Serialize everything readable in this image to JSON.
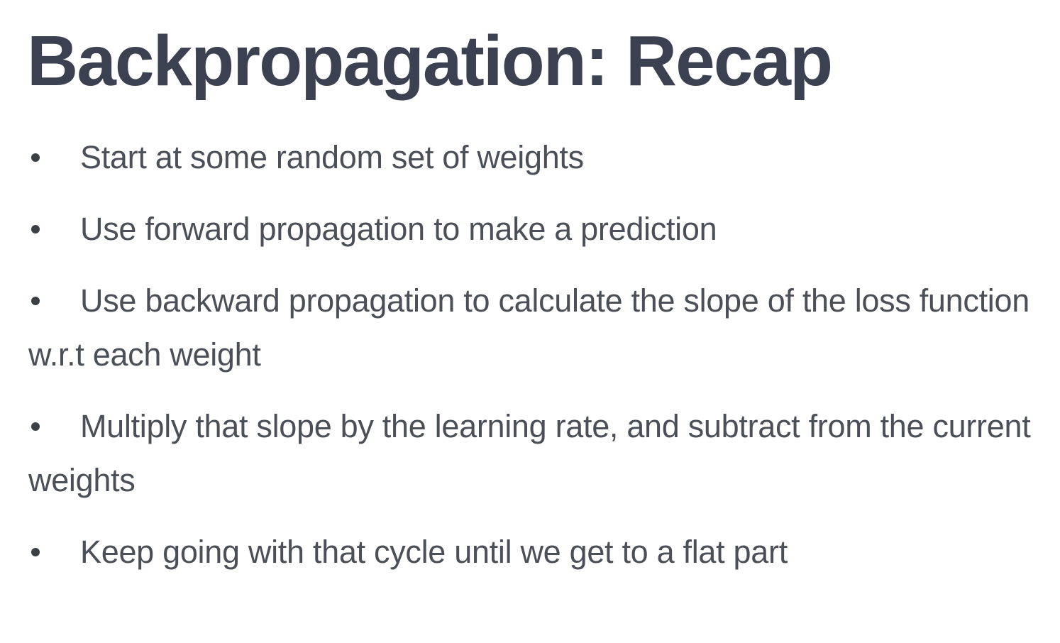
{
  "slide": {
    "title": "Backpropagation: Recap",
    "bullets": [
      "Start at some random set of weights",
      "Use forward propagation to make a prediction",
      "Use backward propagation to calculate the slope of the loss function w.r.t each weight",
      "Multiply that slope by the learning rate, and subtract from the current weights",
      "Keep going with that cycle until we get to a flat part"
    ]
  }
}
